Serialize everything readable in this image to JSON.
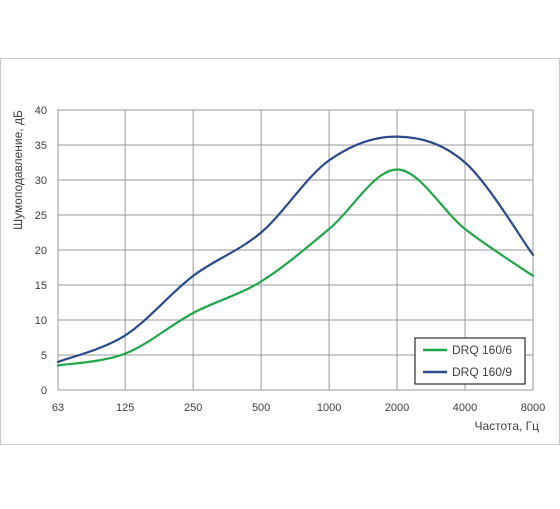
{
  "chart_data": {
    "type": "line",
    "xlabel": "Частота, Гц",
    "ylabel": "Шумоподавление, дБ",
    "x_scale": "log2",
    "x": [
      63,
      125,
      250,
      500,
      1000,
      2000,
      4000,
      8000
    ],
    "x_tick_labels": [
      "63",
      "125",
      "250",
      "500",
      "1000",
      "2000",
      "4000",
      "8000"
    ],
    "ylim": [
      0,
      40
    ],
    "y_ticks": [
      0,
      5,
      10,
      15,
      20,
      25,
      30,
      35,
      40
    ],
    "y_tick_labels": [
      "0",
      "5",
      "10",
      "15",
      "20",
      "25",
      "30",
      "35",
      "40"
    ],
    "grid": true,
    "legend_position": "bottom-right",
    "series": [
      {
        "name": "DRQ 160/6",
        "color": "#1fa64a",
        "values": [
          3.5,
          5.2,
          11.0,
          15.5,
          23.0,
          31.5,
          23.0,
          16.3
        ]
      },
      {
        "name": "DRQ 160/9",
        "color": "#2b4a8b",
        "values": [
          4.0,
          7.8,
          16.3,
          22.5,
          32.8,
          36.2,
          32.5,
          19.3
        ]
      }
    ]
  }
}
